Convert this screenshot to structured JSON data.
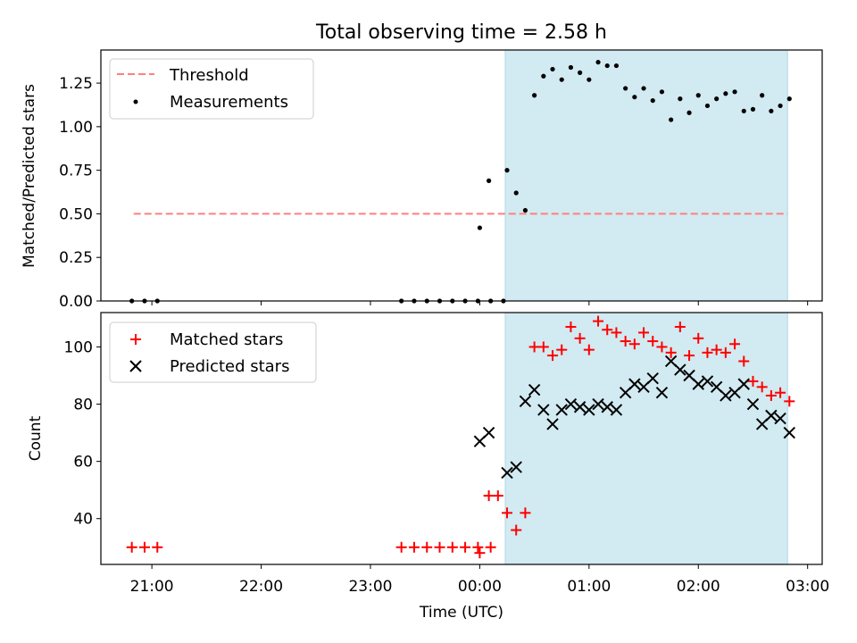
{
  "chart_data": [
    {
      "type": "scatter",
      "title": "Total observing time = 2.58 h",
      "ylabel": "Matched/Predicted stars",
      "xlabel": "",
      "ylim": [
        0.0,
        1.44
      ],
      "yticks": [
        "0.00",
        "0.25",
        "0.50",
        "0.75",
        "1.00",
        "1.25"
      ],
      "legend": "top-left",
      "shaded_region": {
        "x_start": "00:14",
        "x_end": "02:49",
        "color": "#add8e6"
      },
      "threshold": {
        "name": "Threshold",
        "value": 0.5,
        "x_start": "20:50",
        "x_end": "02:49",
        "color": "#ff7f7f",
        "style": "dashed"
      },
      "series": [
        {
          "name": "Measurements",
          "color": "#000000",
          "marker": "dot",
          "points": [
            [
              "20:49",
              0.0
            ],
            [
              "20:56",
              0.0
            ],
            [
              "21:03",
              0.0
            ],
            [
              "23:17",
              0.0
            ],
            [
              "23:24",
              0.0
            ],
            [
              "23:31",
              0.0
            ],
            [
              "23:38",
              0.0
            ],
            [
              "23:45",
              0.0
            ],
            [
              "23:52",
              0.0
            ],
            [
              "23:59",
              0.0
            ],
            [
              "00:06",
              0.0
            ],
            [
              "00:13",
              0.0
            ],
            [
              "00:00",
              0.42
            ],
            [
              "00:05",
              0.69
            ],
            [
              "00:15",
              0.75
            ],
            [
              "00:20",
              0.62
            ],
            [
              "00:25",
              0.52
            ],
            [
              "00:30",
              1.18
            ],
            [
              "00:35",
              1.29
            ],
            [
              "00:40",
              1.33
            ],
            [
              "00:45",
              1.27
            ],
            [
              "00:50",
              1.34
            ],
            [
              "00:55",
              1.31
            ],
            [
              "01:00",
              1.27
            ],
            [
              "01:05",
              1.37
            ],
            [
              "01:10",
              1.35
            ],
            [
              "01:15",
              1.35
            ],
            [
              "01:20",
              1.22
            ],
            [
              "01:25",
              1.17
            ],
            [
              "01:30",
              1.22
            ],
            [
              "01:35",
              1.15
            ],
            [
              "01:40",
              1.2
            ],
            [
              "01:45",
              1.04
            ],
            [
              "01:50",
              1.16
            ],
            [
              "01:55",
              1.08
            ],
            [
              "02:00",
              1.18
            ],
            [
              "02:05",
              1.12
            ],
            [
              "02:10",
              1.16
            ],
            [
              "02:15",
              1.19
            ],
            [
              "02:20",
              1.2
            ],
            [
              "02:25",
              1.09
            ],
            [
              "02:30",
              1.1
            ],
            [
              "02:35",
              1.18
            ],
            [
              "02:40",
              1.09
            ],
            [
              "02:45",
              1.12
            ],
            [
              "02:50",
              1.16
            ]
          ]
        }
      ]
    },
    {
      "type": "scatter",
      "title": "",
      "ylabel": "Count",
      "xlabel": "Time (UTC)",
      "ylim": [
        24,
        112
      ],
      "yticks": [
        "40",
        "60",
        "80",
        "100"
      ],
      "xticks": [
        "21:00",
        "22:00",
        "23:00",
        "00:00",
        "01:00",
        "02:00",
        "03:00"
      ],
      "x_range": [
        "20:32",
        "03:08"
      ],
      "legend": "top-left",
      "shaded_region": {
        "x_start": "00:14",
        "x_end": "02:49",
        "color": "#add8e6"
      },
      "series": [
        {
          "name": "Matched stars",
          "color": "#ff0000",
          "marker": "plus",
          "points": [
            [
              "20:49",
              30
            ],
            [
              "20:56",
              30
            ],
            [
              "21:03",
              30
            ],
            [
              "23:17",
              30
            ],
            [
              "23:24",
              30
            ],
            [
              "23:31",
              30
            ],
            [
              "23:38",
              30
            ],
            [
              "23:45",
              30
            ],
            [
              "23:52",
              30
            ],
            [
              "23:59",
              30
            ],
            [
              "00:06",
              30
            ],
            [
              "00:00",
              28
            ],
            [
              "00:05",
              48
            ],
            [
              "00:10",
              48
            ],
            [
              "00:15",
              42
            ],
            [
              "00:20",
              36
            ],
            [
              "00:25",
              42
            ],
            [
              "00:30",
              100
            ],
            [
              "00:35",
              100
            ],
            [
              "00:40",
              97
            ],
            [
              "00:45",
              99
            ],
            [
              "00:50",
              107
            ],
            [
              "00:55",
              103
            ],
            [
              "01:00",
              99
            ],
            [
              "01:05",
              109
            ],
            [
              "01:10",
              106
            ],
            [
              "01:15",
              105
            ],
            [
              "01:20",
              102
            ],
            [
              "01:25",
              101
            ],
            [
              "01:30",
              105
            ],
            [
              "01:35",
              102
            ],
            [
              "01:40",
              100
            ],
            [
              "01:45",
              98
            ],
            [
              "01:50",
              107
            ],
            [
              "01:55",
              97
            ],
            [
              "02:00",
              103
            ],
            [
              "02:05",
              98
            ],
            [
              "02:10",
              99
            ],
            [
              "02:15",
              98
            ],
            [
              "02:20",
              101
            ],
            [
              "02:25",
              95
            ],
            [
              "02:30",
              88
            ],
            [
              "02:35",
              86
            ],
            [
              "02:40",
              83
            ],
            [
              "02:45",
              84
            ],
            [
              "02:50",
              81
            ]
          ]
        },
        {
          "name": "Predicted stars",
          "color": "#000000",
          "marker": "x",
          "points": [
            [
              "00:00",
              67
            ],
            [
              "00:05",
              70
            ],
            [
              "00:15",
              56
            ],
            [
              "00:20",
              58
            ],
            [
              "00:25",
              81
            ],
            [
              "00:30",
              85
            ],
            [
              "00:35",
              78
            ],
            [
              "00:40",
              73
            ],
            [
              "00:45",
              78
            ],
            [
              "00:50",
              80
            ],
            [
              "00:55",
              79
            ],
            [
              "01:00",
              78
            ],
            [
              "01:05",
              80
            ],
            [
              "01:10",
              79
            ],
            [
              "01:15",
              78
            ],
            [
              "01:20",
              84
            ],
            [
              "01:25",
              87
            ],
            [
              "01:30",
              86
            ],
            [
              "01:35",
              89
            ],
            [
              "01:40",
              84
            ],
            [
              "01:45",
              95
            ],
            [
              "01:50",
              92
            ],
            [
              "01:55",
              90
            ],
            [
              "02:00",
              87
            ],
            [
              "02:05",
              88
            ],
            [
              "02:10",
              86
            ],
            [
              "02:15",
              83
            ],
            [
              "02:20",
              84
            ],
            [
              "02:25",
              87
            ],
            [
              "02:30",
              80
            ],
            [
              "02:35",
              73
            ],
            [
              "02:40",
              76
            ],
            [
              "02:45",
              75
            ],
            [
              "02:50",
              70
            ]
          ]
        }
      ]
    }
  ]
}
